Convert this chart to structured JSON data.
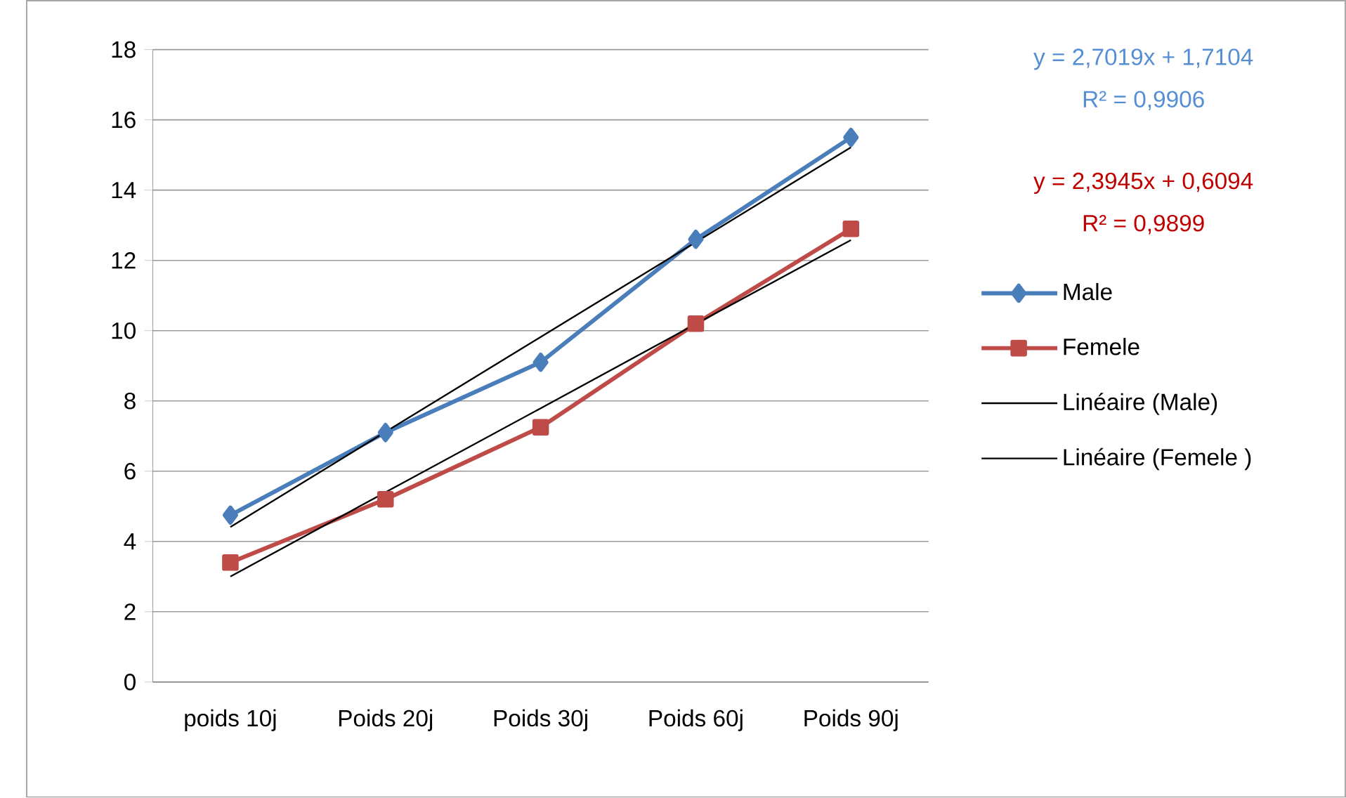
{
  "chart_data": {
    "type": "line",
    "categories": [
      "poids 10j",
      "Poids 20j",
      "Poids 30j",
      "Poids 60j",
      "Poids 90j"
    ],
    "series": [
      {
        "name": "Male",
        "color": "#4a7ebb",
        "marker": "diamond",
        "values": [
          4.75,
          7.1,
          9.1,
          12.6,
          15.5
        ]
      },
      {
        "name": "Femele",
        "color": "#be4b48",
        "marker": "square",
        "values": [
          3.4,
          5.2,
          7.25,
          10.2,
          12.9
        ]
      },
      {
        "name": "Linéaire (Male)",
        "color": "#000000",
        "marker": "none",
        "values": [
          4.41,
          7.12,
          9.82,
          12.52,
          15.22
        ]
      },
      {
        "name": "Linéaire (Femele )",
        "color": "#000000",
        "marker": "none",
        "values": [
          3.0,
          5.4,
          7.79,
          10.19,
          12.58
        ]
      }
    ],
    "annotations": [
      "y = 2,7019x + 1,7104",
      "R² = 0,9906",
      "y = 2,3945x + 0,6094",
      "R² = 0,9899"
    ],
    "ylim": [
      0,
      18
    ],
    "yticks": [
      0,
      2,
      4,
      6,
      8,
      10,
      12,
      14,
      16,
      18
    ],
    "grid": "y",
    "legend": "right",
    "line_style": "solid"
  }
}
